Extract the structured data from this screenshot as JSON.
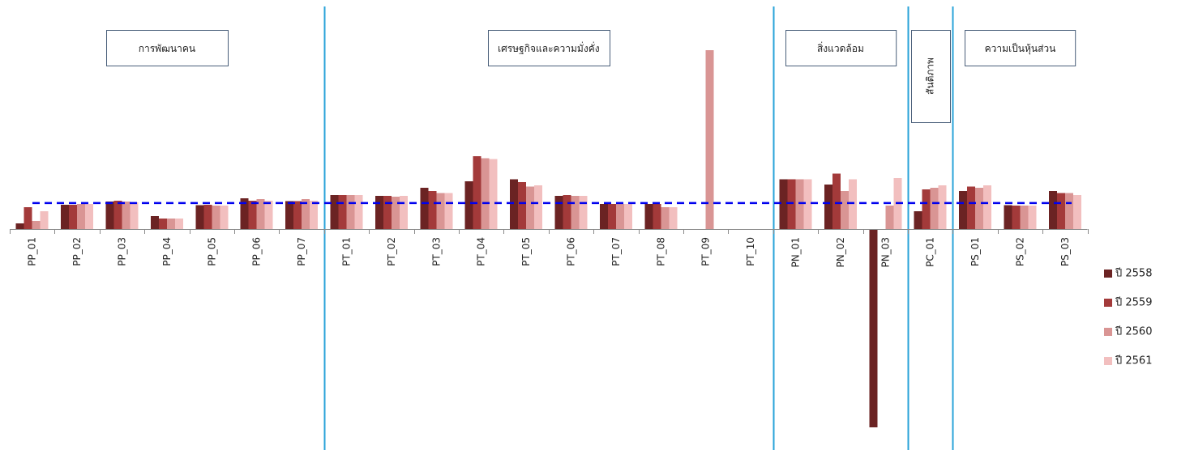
{
  "chart_data": {
    "type": "bar",
    "categories": [
      "PP_01",
      "PP_02",
      "PP_03",
      "PP_04",
      "PP_05",
      "PP_06",
      "PP_07",
      "PT_01",
      "PT_02",
      "PT_03",
      "PT_04",
      "PT_05",
      "PT_06",
      "PT_07",
      "PT_08",
      "PT_09",
      "PT_10",
      "PN_01",
      "PN_02",
      "PN_03",
      "PC_01",
      "PS_01",
      "PS_02",
      "PS_03"
    ],
    "series": [
      {
        "name": "ปี 2558",
        "color": "#6b2323",
        "values": [
          0.22,
          0.94,
          1.06,
          0.5,
          0.92,
          1.18,
          1.08,
          1.31,
          1.28,
          1.59,
          1.84,
          1.91,
          1.28,
          0.97,
          0.97,
          null,
          null,
          1.91,
          1.72,
          -7.63,
          0.69,
          1.47,
          0.92,
          1.47
        ]
      },
      {
        "name": "ปี 2559",
        "color": "#a33a3a",
        "values": [
          0.84,
          0.94,
          1.09,
          0.41,
          0.94,
          1.09,
          1.08,
          1.31,
          1.28,
          1.47,
          2.81,
          1.81,
          1.31,
          0.97,
          0.97,
          null,
          null,
          1.91,
          2.13,
          null,
          1.53,
          1.63,
          0.91,
          1.38
        ]
      },
      {
        "name": "ปี 2560",
        "color": "#d99594",
        "values": [
          0.31,
          0.97,
          1.06,
          0.41,
          0.91,
          1.16,
          1.16,
          1.31,
          1.25,
          1.38,
          2.72,
          1.63,
          1.28,
          0.97,
          0.84,
          6.88,
          null,
          1.91,
          1.47,
          0.91,
          1.59,
          1.59,
          0.91,
          1.38
        ]
      },
      {
        "name": "ปี 2561",
        "color": "#f2bfbf",
        "values": [
          0.69,
          0.97,
          1.03,
          0.41,
          0.91,
          1.09,
          1.09,
          1.31,
          1.28,
          1.38,
          2.69,
          1.69,
          1.28,
          0.97,
          0.84,
          null,
          null,
          1.91,
          1.91,
          1.97,
          1.69,
          1.69,
          0.91,
          1.31
        ]
      }
    ],
    "reference_line": {
      "value": 1.0,
      "color": "#0000ee",
      "style": "dashed"
    },
    "groups": [
      {
        "label": "การพัฒนาคน",
        "start": 0,
        "end": 6
      },
      {
        "label": "เศรษฐกิจและความมั่งคั่ง",
        "start": 7,
        "end": 16
      },
      {
        "label": "สิ่งแวดล้อม",
        "start": 17,
        "end": 19
      },
      {
        "label": "สันติภาพ",
        "start": 20,
        "end": 20,
        "vertical": true
      },
      {
        "label": "ความเป็นหุ้นส่วน",
        "start": 21,
        "end": 23
      }
    ],
    "separator_color": "#29a3d8",
    "legend_position": "right",
    "grid": false,
    "title": "",
    "xlabel": "",
    "ylabel": ""
  }
}
